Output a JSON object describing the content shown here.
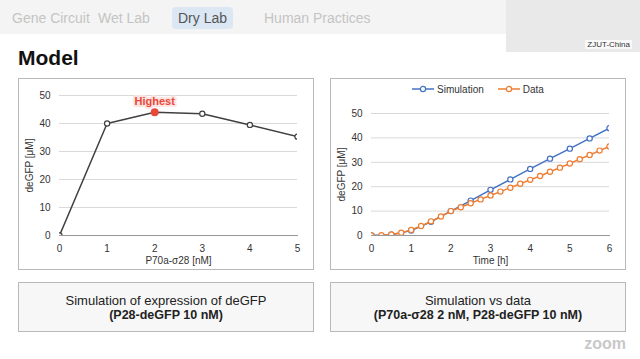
{
  "page": {
    "nav": [
      "Gene Circuit",
      "Wet Lab",
      "Dry Lab",
      "Human Practices"
    ],
    "active_nav": "Dry Lab",
    "team": "ZJUT-China",
    "heading": "Model",
    "watermark": "zoom",
    "captions": [
      {
        "text": "Simulation of expression of deGFP",
        "detail": "(P28-deGFP 10 nM)"
      },
      {
        "text": "Simulation vs data",
        "detail": "(P70a-σ28 2 nM, P28-deGFP 10 nM)"
      }
    ]
  },
  "chart_data": [
    {
      "type": "line",
      "x_label": "P70a-σ28 [nM]",
      "y_label": "deGFP [μM]",
      "x": [
        0,
        1,
        2,
        3,
        4,
        5
      ],
      "series": [
        {
          "values": [
            0,
            40,
            44,
            43.5,
            39.5,
            35.3
          ],
          "color": "#404040",
          "marker": "circle"
        }
      ],
      "xlim": [
        0,
        5
      ],
      "xticks": [
        0,
        1,
        2,
        3,
        4,
        5
      ],
      "ylim": [
        0,
        50
      ],
      "yticks": [
        0,
        10,
        20,
        30,
        40,
        50
      ],
      "grid": true,
      "annotations": [
        {
          "x": 2,
          "y": 44,
          "text": "Highest",
          "color": "#e8483a"
        }
      ]
    },
    {
      "type": "line",
      "x_label": "Time [h]",
      "y_label": "deGFP [μM]",
      "legend": "top",
      "series": [
        {
          "name": "Simulation",
          "color": "#4472c4",
          "marker": "circle",
          "x": [
            0,
            0.5,
            1,
            1.5,
            2,
            2.5,
            3,
            3.5,
            4,
            4.5,
            5,
            5.5,
            6
          ],
          "values": [
            0,
            0.3,
            2.0,
            5.6,
            10.0,
            14.3,
            18.7,
            23.0,
            27.3,
            31.5,
            35.6,
            39.8,
            44.0
          ]
        },
        {
          "name": "Data",
          "color": "#ed7d31",
          "marker": "circle",
          "x": [
            0,
            0.25,
            0.5,
            0.75,
            1,
            1.25,
            1.5,
            1.75,
            2,
            2.25,
            2.5,
            2.75,
            3,
            3.25,
            3.5,
            3.75,
            4,
            4.25,
            4.5,
            4.75,
            5,
            5.25,
            5.5,
            5.75,
            6
          ],
          "values": [
            0,
            0.1,
            0.4,
            1.1,
            2.3,
            3.9,
            5.8,
            7.8,
            10.0,
            11.6,
            13.2,
            14.8,
            16.4,
            18.0,
            19.6,
            21.2,
            22.8,
            24.4,
            26.1,
            27.8,
            29.5,
            31.3,
            33.0,
            34.8,
            36.5
          ]
        }
      ],
      "xlim": [
        0,
        6
      ],
      "xticks": [
        0,
        1,
        2,
        3,
        4,
        5,
        6
      ],
      "ylim": [
        0,
        50
      ],
      "yticks": [
        0,
        10,
        20,
        30,
        40,
        50
      ],
      "grid": true
    }
  ]
}
